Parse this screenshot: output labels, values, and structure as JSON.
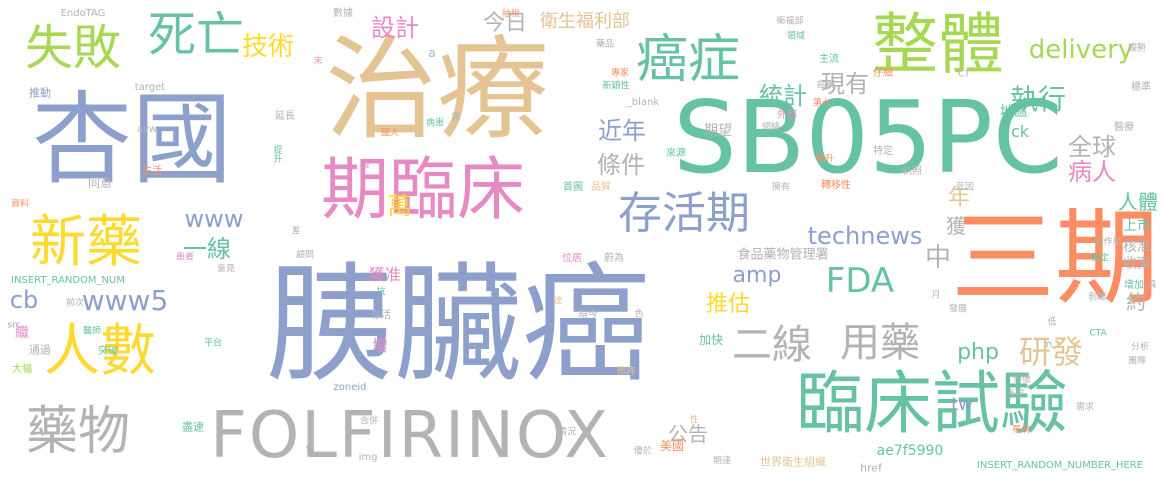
{
  "palette": {
    "teal": "#66c2a5",
    "orange": "#fc8d62",
    "blue": "#8da0cb",
    "pink": "#e78ac3",
    "lime": "#a6d854",
    "yellow": "#ffd92f",
    "tan": "#e5c494",
    "gray": "#b3b3b3"
  },
  "words": [
    {
      "text": "胰臟癌",
      "color": "blue"
    },
    {
      "text": "治療",
      "color": "tan"
    },
    {
      "text": "SB05PC",
      "color": "teal"
    },
    {
      "text": "三期",
      "color": "orange"
    },
    {
      "text": "杏國",
      "color": "blue"
    },
    {
      "text": "期臨床",
      "color": "pink"
    },
    {
      "text": "整體",
      "color": "lime"
    },
    {
      "text": "臨床試驗",
      "color": "teal"
    },
    {
      "text": "FOLFIRINOX",
      "color": "gray"
    },
    {
      "text": "人數",
      "color": "yellow"
    },
    {
      "text": "新藥",
      "color": "yellow"
    },
    {
      "text": "藥物",
      "color": "gray"
    },
    {
      "text": "失敗",
      "color": "lime"
    },
    {
      "text": "死亡",
      "color": "teal"
    },
    {
      "text": "癌症",
      "color": "teal"
    },
    {
      "text": "存活期",
      "color": "blue"
    },
    {
      "text": "二線",
      "color": "gray"
    },
    {
      "text": "用藥",
      "color": "gray"
    },
    {
      "text": "FDA",
      "color": "teal"
    },
    {
      "text": "www5",
      "color": "blue"
    },
    {
      "text": "研發",
      "color": "tan"
    },
    {
      "text": "技術",
      "color": "yellow"
    },
    {
      "text": "執行",
      "color": "teal"
    },
    {
      "text": "現有",
      "color": "gray"
    },
    {
      "text": "統計",
      "color": "teal"
    },
    {
      "text": "delivery",
      "color": "lime"
    },
    {
      "text": "technews",
      "color": "blue"
    },
    {
      "text": "條件",
      "color": "gray"
    },
    {
      "text": "近年",
      "color": "blue"
    },
    {
      "text": "設計",
      "color": "pink"
    },
    {
      "text": "今日",
      "color": "gray"
    },
    {
      "text": "衛生福利部",
      "color": "tan"
    },
    {
      "text": "全球",
      "color": "gray"
    },
    {
      "text": "病人",
      "color": "pink"
    },
    {
      "text": "一線",
      "color": "teal"
    },
    {
      "text": "www",
      "color": "blue"
    },
    {
      "text": "萬",
      "color": "yellow"
    },
    {
      "text": "中",
      "color": "gray"
    },
    {
      "text": "amp",
      "color": "blue"
    },
    {
      "text": "推估",
      "color": "yellow"
    },
    {
      "text": "php",
      "color": "teal"
    },
    {
      "text": "cb",
      "color": "blue"
    },
    {
      "text": "年",
      "color": "tan"
    },
    {
      "text": "獲",
      "color": "gray"
    },
    {
      "text": "人體",
      "color": "teal"
    },
    {
      "text": "約",
      "color": "gray"
    },
    {
      "text": "tw",
      "color": "blue"
    },
    {
      "text": "公告",
      "color": "gray"
    },
    {
      "text": "期望",
      "color": "gray"
    },
    {
      "text": "ck",
      "color": "teal"
    },
    {
      "text": "獲准",
      "color": "pink"
    },
    {
      "text": "上市",
      "color": "teal"
    },
    {
      "text": "核准",
      "color": "gray"
    },
    {
      "text": "收案",
      "color": "gray"
    },
    {
      "text": "地區",
      "color": "teal"
    },
    {
      "text": "食品藥物管理署",
      "color": "gray"
    },
    {
      "text": "ae7f5990",
      "color": "teal"
    },
    {
      "text": "美國",
      "color": "orange"
    },
    {
      "text": "世界衛生組織",
      "color": "tan"
    },
    {
      "text": "INSERT_RANDOM_NUMBER_HERE",
      "color": "teal"
    },
    {
      "text": "INSERT_RANDOM_NUM",
      "color": "teal"
    },
    {
      "text": "EndoTAG",
      "color": "gray"
    },
    {
      "text": "數據",
      "color": "gray"
    },
    {
      "text": "推動",
      "color": "blue"
    },
    {
      "text": "target",
      "color": "gray"
    },
    {
      "text": "avw",
      "color": "gray"
    },
    {
      "text": "同意",
      "color": "gray"
    },
    {
      "text": "生活",
      "color": "orange"
    },
    {
      "text": "通過",
      "color": "gray"
    },
    {
      "text": "突破",
      "color": "teal"
    },
    {
      "text": "大幅",
      "color": "lime"
    },
    {
      "text": "盡速",
      "color": "teal"
    },
    {
      "text": "存活",
      "color": "gray"
    },
    {
      "text": "現今",
      "color": "gray"
    },
    {
      "text": "加快",
      "color": "teal"
    },
    {
      "text": "首圖",
      "color": "teal"
    },
    {
      "text": "品質",
      "color": "tan"
    },
    {
      "text": "_blank",
      "color": "gray"
    },
    {
      "text": "來源",
      "color": "teal"
    },
    {
      "text": "img",
      "color": "gray"
    },
    {
      "text": "href",
      "color": "gray"
    },
    {
      "text": "zoneid",
      "color": "blue"
    },
    {
      "text": "意見",
      "color": "gray"
    },
    {
      "text": "患者",
      "color": "pink"
    },
    {
      "text": "顧問",
      "color": "gray"
    },
    {
      "text": "位居",
      "color": "pink"
    },
    {
      "text": "蔚為",
      "color": "gray"
    },
    {
      "text": "主流",
      "color": "teal"
    },
    {
      "text": "外部",
      "color": "pink"
    },
    {
      "text": "仔細",
      "color": "orange"
    },
    {
      "text": "標準",
      "color": "gray"
    },
    {
      "text": "醫療",
      "color": "gray"
    },
    {
      "text": "趨勢",
      "color": "gray"
    },
    {
      "text": "特定",
      "color": "gray"
    },
    {
      "text": "執照",
      "color": "gray"
    },
    {
      "text": "擁有",
      "color": "gray"
    },
    {
      "text": "轉移性",
      "color": "orange"
    },
    {
      "text": "副作用",
      "color": "gray"
    },
    {
      "text": "擬定",
      "color": "teal"
    },
    {
      "text": "剝離",
      "color": "gray"
    },
    {
      "text": "增加",
      "color": "teal"
    },
    {
      "text": "分析",
      "color": "gray"
    },
    {
      "text": "團隊",
      "color": "gray"
    },
    {
      "text": "預後",
      "color": "gray"
    },
    {
      "text": "表現",
      "color": "gray"
    },
    {
      "text": "需求",
      "color": "gray"
    },
    {
      "text": "罹病",
      "color": "orange"
    },
    {
      "text": "優於",
      "color": "gray"
    },
    {
      "text": "情況",
      "color": "gray"
    },
    {
      "text": "期達",
      "color": "gray"
    },
    {
      "text": "合併",
      "color": "gray"
    },
    {
      "text": "死因",
      "color": "gray"
    },
    {
      "text": "提升",
      "color": "teal"
    },
    {
      "text": "延長",
      "color": "gray"
    },
    {
      "text": "國人",
      "color": "orange"
    },
    {
      "text": "病患",
      "color": "teal"
    },
    {
      "text": "新穎性",
      "color": "teal"
    },
    {
      "text": "專家",
      "color": "orange"
    },
    {
      "text": "藥品",
      "color": "gray"
    },
    {
      "text": "衛福部",
      "color": "gray"
    },
    {
      "text": "領域",
      "color": "teal"
    },
    {
      "text": "癌藥",
      "color": "gray"
    },
    {
      "text": "第七",
      "color": "orange"
    },
    {
      "text": "網絡",
      "color": "gray"
    },
    {
      "text": "攀升",
      "color": "orange"
    },
    {
      "text": "資料",
      "color": "orange"
    },
    {
      "text": "前次",
      "color": "gray"
    },
    {
      "text": "醫師",
      "color": "teal"
    },
    {
      "text": "平台",
      "color": "teal"
    },
    {
      "text": "CTA",
      "color": "teal"
    },
    {
      "text": "CT",
      "color": "gray"
    },
    {
      "text": "src",
      "color": "blue"
    },
    {
      "text": "抗",
      "color": "teal"
    },
    {
      "text": "增",
      "color": "pink"
    },
    {
      "text": "繼",
      "color": "pink"
    },
    {
      "text": "長",
      "color": "pink"
    },
    {
      "text": "徵詢",
      "color": "tan"
    },
    {
      "text": "差",
      "color": "gray"
    },
    {
      "text": "位",
      "color": "gray"
    },
    {
      "text": "具",
      "color": "gray"
    },
    {
      "text": "低",
      "color": "gray"
    },
    {
      "text": "月",
      "color": "gray"
    },
    {
      "text": "發展",
      "color": "gray"
    },
    {
      "text": "n",
      "color": "gray"
    },
    {
      "text": "a",
      "color": "gray"
    },
    {
      "text": "末",
      "color": "pink"
    },
    {
      "text": "途",
      "color": "tan"
    },
    {
      "text": "色",
      "color": "gray"
    },
    {
      "text": "性",
      "color": "tan"
    },
    {
      "text": "需",
      "color": "gray"
    },
    {
      "text": "抽稅",
      "color": "orange"
    }
  ]
}
